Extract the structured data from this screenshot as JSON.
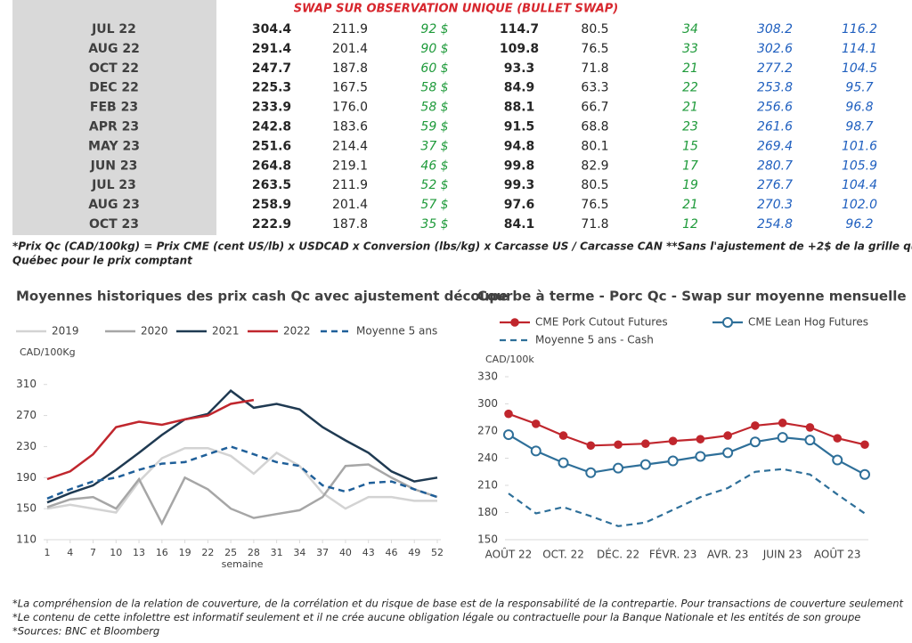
{
  "table": {
    "title": "SWAP SUR OBSERVATION UNIQUE (BULLET SWAP)",
    "rows": [
      [
        "JUL 22",
        "304.4",
        "211.9",
        "92 $",
        "114.7",
        "80.5",
        "34",
        "308.2",
        "116.2"
      ],
      [
        "AUG 22",
        "291.4",
        "201.4",
        "90 $",
        "109.8",
        "76.5",
        "33",
        "302.6",
        "114.1"
      ],
      [
        "OCT 22",
        "247.7",
        "187.8",
        "60 $",
        "93.3",
        "71.8",
        "21",
        "277.2",
        "104.5"
      ],
      [
        "DEC 22",
        "225.3",
        "167.5",
        "58 $",
        "84.9",
        "63.3",
        "22",
        "253.8",
        "95.7"
      ],
      [
        "FEB 23",
        "233.9",
        "176.0",
        "58 $",
        "88.1",
        "66.7",
        "21",
        "256.6",
        "96.8"
      ],
      [
        "APR 23",
        "242.8",
        "183.6",
        "59 $",
        "91.5",
        "68.8",
        "23",
        "261.6",
        "98.7"
      ],
      [
        "MAY 23",
        "251.6",
        "214.4",
        "37 $",
        "94.8",
        "80.1",
        "15",
        "269.4",
        "101.6"
      ],
      [
        "JUN 23",
        "264.8",
        "219.1",
        "46 $",
        "99.8",
        "82.9",
        "17",
        "280.7",
        "105.9"
      ],
      [
        "JUL 23",
        "263.5",
        "211.9",
        "52 $",
        "99.3",
        "80.5",
        "19",
        "276.7",
        "104.4"
      ],
      [
        "AUG 23",
        "258.9",
        "201.4",
        "57 $",
        "97.6",
        "76.5",
        "21",
        "270.3",
        "102.0"
      ],
      [
        "OCT 23",
        "222.9",
        "187.8",
        "35 $",
        "84.1",
        "71.8",
        "12",
        "254.8",
        "96.2"
      ]
    ],
    "footnote": [
      "*Prix Qc (CAD/100kg) = Prix CME (cent US/lb) x USDCAD x Conversion (lbs/kg) x Carcasse US / Carcasse CAN **Sans l'ajustement de +2$ de la grille qualité",
      "Québec pour le prix comptant"
    ]
  },
  "chart_data": [
    {
      "type": "line",
      "title": "Moyennes historiques des prix cash Qc avec ajustement découpe",
      "ylabel": "CAD/100Kg",
      "xlabel": "semaine",
      "x": [
        1,
        4,
        7,
        10,
        13,
        16,
        19,
        22,
        25,
        28,
        31,
        34,
        37,
        40,
        43,
        46,
        49,
        52
      ],
      "xlim": [
        1,
        52
      ],
      "xticks": [
        1,
        4,
        7,
        10,
        13,
        16,
        19,
        22,
        25,
        28,
        31,
        34,
        37,
        40,
        43,
        46,
        49,
        52
      ],
      "ylim": [
        110,
        320
      ],
      "yticks": [
        110,
        150,
        190,
        230,
        270,
        310
      ],
      "series": [
        {
          "name": "2019",
          "color": "#d3d3d3",
          "values": [
            150,
            155,
            150,
            145,
            185,
            215,
            228,
            228,
            218,
            195,
            222,
            205,
            170,
            150,
            165,
            165,
            160,
            160
          ]
        },
        {
          "name": "2020",
          "color": "#a6a6a6",
          "values": [
            152,
            162,
            165,
            150,
            188,
            131,
            190,
            175,
            150,
            138,
            143,
            148,
            165,
            205,
            207,
            190,
            175,
            165
          ]
        },
        {
          "name": "2021",
          "color": "#1f3a52",
          "values": [
            158,
            170,
            180,
            200,
            222,
            245,
            265,
            272,
            302,
            280,
            285,
            278,
            255,
            238,
            222,
            198,
            185,
            190
          ]
        },
        {
          "name": "2022",
          "color": "#c0262d",
          "values": [
            188,
            198,
            220,
            255,
            262,
            258,
            265,
            270,
            285,
            290,
            null,
            null,
            null,
            null,
            null,
            null,
            null,
            null
          ]
        },
        {
          "name": "Moyenne 5 ans",
          "color": "#1f5f99",
          "style": "dashed",
          "values": [
            163,
            175,
            185,
            190,
            200,
            208,
            210,
            220,
            230,
            220,
            210,
            205,
            180,
            172,
            183,
            185,
            175,
            165
          ]
        }
      ]
    },
    {
      "type": "line",
      "title": "Courbe à terme - Porc Qc - Swap sur moyenne mensuelle",
      "ylabel": "CAD/100k",
      "categories": [
        "AOÛT 22",
        null,
        "OCT. 22",
        null,
        "DÉC. 22",
        null,
        "FÉVR. 23",
        null,
        "AVR. 23",
        null,
        "JUIN 23",
        null,
        "AOÛT 23",
        null
      ],
      "ylim": [
        150,
        330
      ],
      "yticks": [
        150,
        180,
        210,
        240,
        270,
        300,
        330
      ],
      "series": [
        {
          "name": "CME Pork Cutout Futures",
          "color": "#c0262d",
          "marker": "filled",
          "values": [
            289,
            278,
            265,
            254,
            255,
            256,
            259,
            261,
            265,
            276,
            279,
            274,
            262,
            255
          ]
        },
        {
          "name": "CME Lean Hog Futures",
          "color": "#2e6f99",
          "marker": "open",
          "values": [
            266,
            248,
            235,
            224,
            229,
            233,
            237,
            242,
            246,
            258,
            263,
            260,
            238,
            222
          ]
        },
        {
          "name": "Moyenne 5 ans - Cash",
          "color": "#2e6f99",
          "style": "dashed",
          "values": [
            201,
            179,
            186,
            176,
            165,
            169,
            183,
            197,
            207,
            225,
            228,
            222,
            200,
            179
          ]
        }
      ]
    }
  ],
  "footer": [
    "*La compréhension de la relation de couverture, de la corrélation et du risque de base est de la responsabilité de la contrepartie. Pour transactions de couverture seulement",
    "*Le contenu de cette infolettre est informatif seulement et il ne crée aucune obligation légale ou contractuelle pour la Banque Nationale et les entités de son groupe",
    "*Sources: BNC et Bloomberg"
  ]
}
